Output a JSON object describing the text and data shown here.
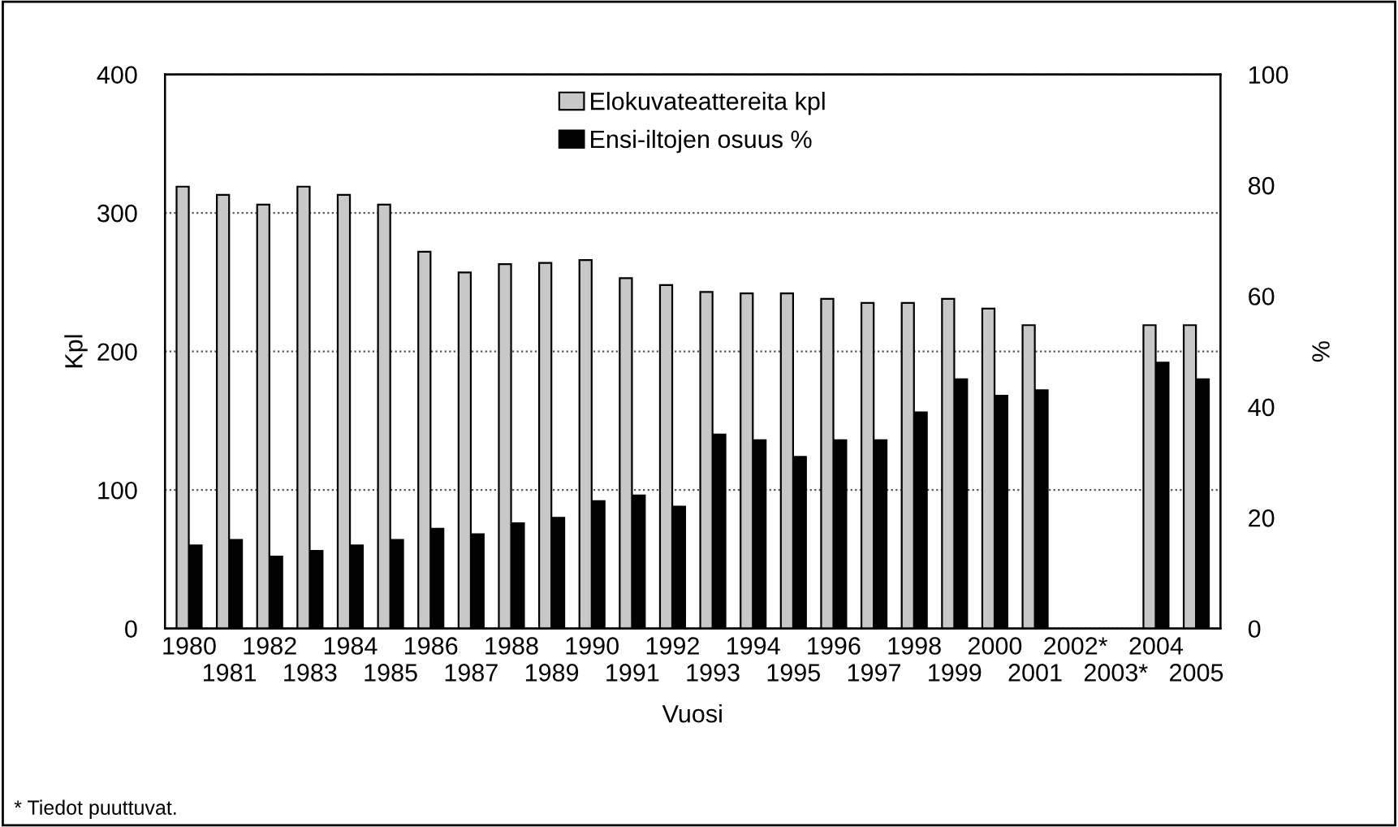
{
  "chart_data": {
    "type": "bar",
    "xlabel": "Vuosi",
    "ylabel": "Kpl",
    "y2label": "%",
    "categories": [
      "1980",
      "1981",
      "1982",
      "1983",
      "1984",
      "1985",
      "1986",
      "1987",
      "1988",
      "1989",
      "1990",
      "1991",
      "1992",
      "1993",
      "1994",
      "1995",
      "1996",
      "1997",
      "1998",
      "1999",
      "2000",
      "2001",
      "2002*",
      "2003*",
      "2004",
      "2005"
    ],
    "series": [
      {
        "name": "Elokuvateattereita kpl",
        "color": "#c8c8c8",
        "values": [
          319,
          313,
          306,
          319,
          313,
          306,
          272,
          257,
          263,
          264,
          266,
          253,
          248,
          243,
          242,
          242,
          238,
          235,
          235,
          238,
          231,
          219,
          null,
          null,
          219,
          219
        ]
      },
      {
        "name": "Ensi-iltojen osuus %",
        "color": "#000000",
        "axis": "y2",
        "values": [
          15,
          16,
          13,
          14,
          15,
          16,
          18,
          17,
          19,
          20,
          23,
          24,
          22,
          35,
          34,
          31,
          34,
          34,
          39,
          45,
          42,
          43,
          null,
          null,
          48,
          45
        ]
      }
    ],
    "ylim": [
      0,
      400
    ],
    "yticks": [
      0,
      100,
      200,
      300,
      400
    ],
    "y2lim": [
      0,
      100
    ],
    "y2ticks": [
      0,
      20,
      40,
      60,
      80,
      100
    ],
    "grid": "y",
    "legend": "top",
    "annotations": [
      "* Tiedot puuttuvat."
    ]
  }
}
